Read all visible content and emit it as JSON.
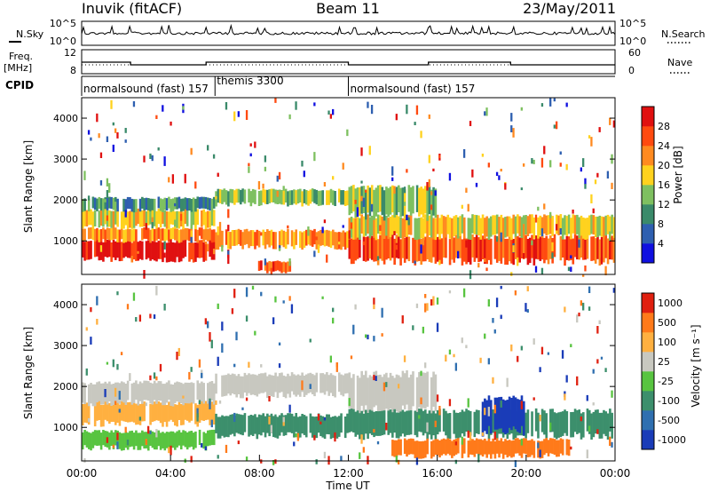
{
  "header": {
    "site": "Inuvik (fitACF)",
    "beam": "Beam 11",
    "date": "23/May/2011"
  },
  "aux_panels": {
    "nsky_label": "N.Sky",
    "nsky_ticks": [
      "10^5",
      "10^0"
    ],
    "nsearch_label": "N.Search",
    "nsearch_ticks": [
      "10^5",
      "10^0"
    ],
    "freq_label": "Freq.",
    "freq_unit": "[MHz]",
    "freq_ticks": [
      "12",
      "8"
    ],
    "nave_label": "Nave",
    "nave_ticks": [
      "60",
      "0"
    ]
  },
  "cpid": {
    "label": "CPID",
    "segments": [
      {
        "text": "normalsound (fast) 157",
        "start_h": 0,
        "end_h": 6
      },
      {
        "text": "themis 3300",
        "start_h": 6,
        "end_h": 12
      },
      {
        "text": "normalsound (fast) 157",
        "start_h": 12,
        "end_h": 24
      }
    ]
  },
  "axes": {
    "ylabel": "Slant Range [km]",
    "yticks": [
      "1000",
      "2000",
      "3000",
      "4000"
    ],
    "xticks": [
      "00:00",
      "04:00",
      "08:00",
      "12:00",
      "16:00",
      "20:00",
      "00:00"
    ],
    "xlabel": "Time UT"
  },
  "colorbars": {
    "power": {
      "label": "Power [dB]",
      "ticks": [
        "4",
        "8",
        "12",
        "16",
        "20",
        "24",
        "28"
      ],
      "colors": [
        "#1010e0",
        "#2e5fb0",
        "#3a8a6a",
        "#7ec060",
        "#ffd21e",
        "#ff8a20",
        "#ff4a10",
        "#e01010"
      ]
    },
    "velocity": {
      "label": "Velocity [m s⁻¹]",
      "ticks": [
        "1000",
        "500",
        "100",
        "25",
        "-25",
        "-100",
        "-500",
        "-1000"
      ],
      "colors": [
        "#1a3cb8",
        "#2f6fb0",
        "#3c8f6c",
        "#58c440",
        "#c8c8c0",
        "#ffb040",
        "#ff7a1a",
        "#e02010"
      ]
    }
  },
  "chart_data": [
    {
      "type": "heatmap",
      "name": "Power",
      "x_range_hours": [
        0,
        24
      ],
      "y_range_km": [
        180,
        4500
      ],
      "bands": [
        {
          "t0": 0,
          "t1": 6,
          "r0": 550,
          "r1": 1000,
          "level": 7
        },
        {
          "t0": 0,
          "t1": 6,
          "r0": 1000,
          "r1": 1300,
          "level": 5
        },
        {
          "t0": 0,
          "t1": 6,
          "r0": 1350,
          "r1": 1750,
          "level": 4
        },
        {
          "t0": 0,
          "t1": 6,
          "r0": 1750,
          "r1": 2050,
          "level": 2
        },
        {
          "t0": 6,
          "t1": 12,
          "r0": 1900,
          "r1": 2250,
          "level": 3
        },
        {
          "t0": 6,
          "t1": 12,
          "r0": 850,
          "r1": 1250,
          "level": 5
        },
        {
          "t0": 8,
          "t1": 9.5,
          "r0": 250,
          "r1": 500,
          "level": 6
        },
        {
          "t0": 12,
          "t1": 24,
          "r0": 500,
          "r1": 1100,
          "level": 6
        },
        {
          "t0": 12,
          "t1": 24,
          "r0": 1100,
          "r1": 1600,
          "level": 4
        },
        {
          "t0": 12,
          "t1": 16,
          "r0": 1600,
          "r1": 2300,
          "level": 3
        }
      ]
    },
    {
      "type": "heatmap",
      "name": "Velocity",
      "x_range_hours": [
        0,
        24
      ],
      "y_range_km": [
        180,
        4500
      ],
      "bands": [
        {
          "t0": 0,
          "t1": 6,
          "r0": 500,
          "r1": 900,
          "level": 3
        },
        {
          "t0": 0,
          "t1": 6,
          "r0": 1100,
          "r1": 1600,
          "level": 5
        },
        {
          "t0": 0,
          "t1": 6,
          "r0": 1600,
          "r1": 2100,
          "level": 4
        },
        {
          "t0": 6,
          "t1": 12,
          "r0": 1800,
          "r1": 2300,
          "level": 4
        },
        {
          "t0": 6,
          "t1": 12,
          "r0": 800,
          "r1": 1300,
          "level": 2
        },
        {
          "t0": 12,
          "t1": 16,
          "r0": 1400,
          "r1": 2300,
          "level": 4
        },
        {
          "t0": 12,
          "t1": 24,
          "r0": 800,
          "r1": 1400,
          "level": 2
        },
        {
          "t0": 14,
          "t1": 22,
          "r0": 300,
          "r1": 700,
          "level": 6
        },
        {
          "t0": 18,
          "t1": 20,
          "r0": 900,
          "r1": 1700,
          "level": 0
        }
      ]
    }
  ]
}
